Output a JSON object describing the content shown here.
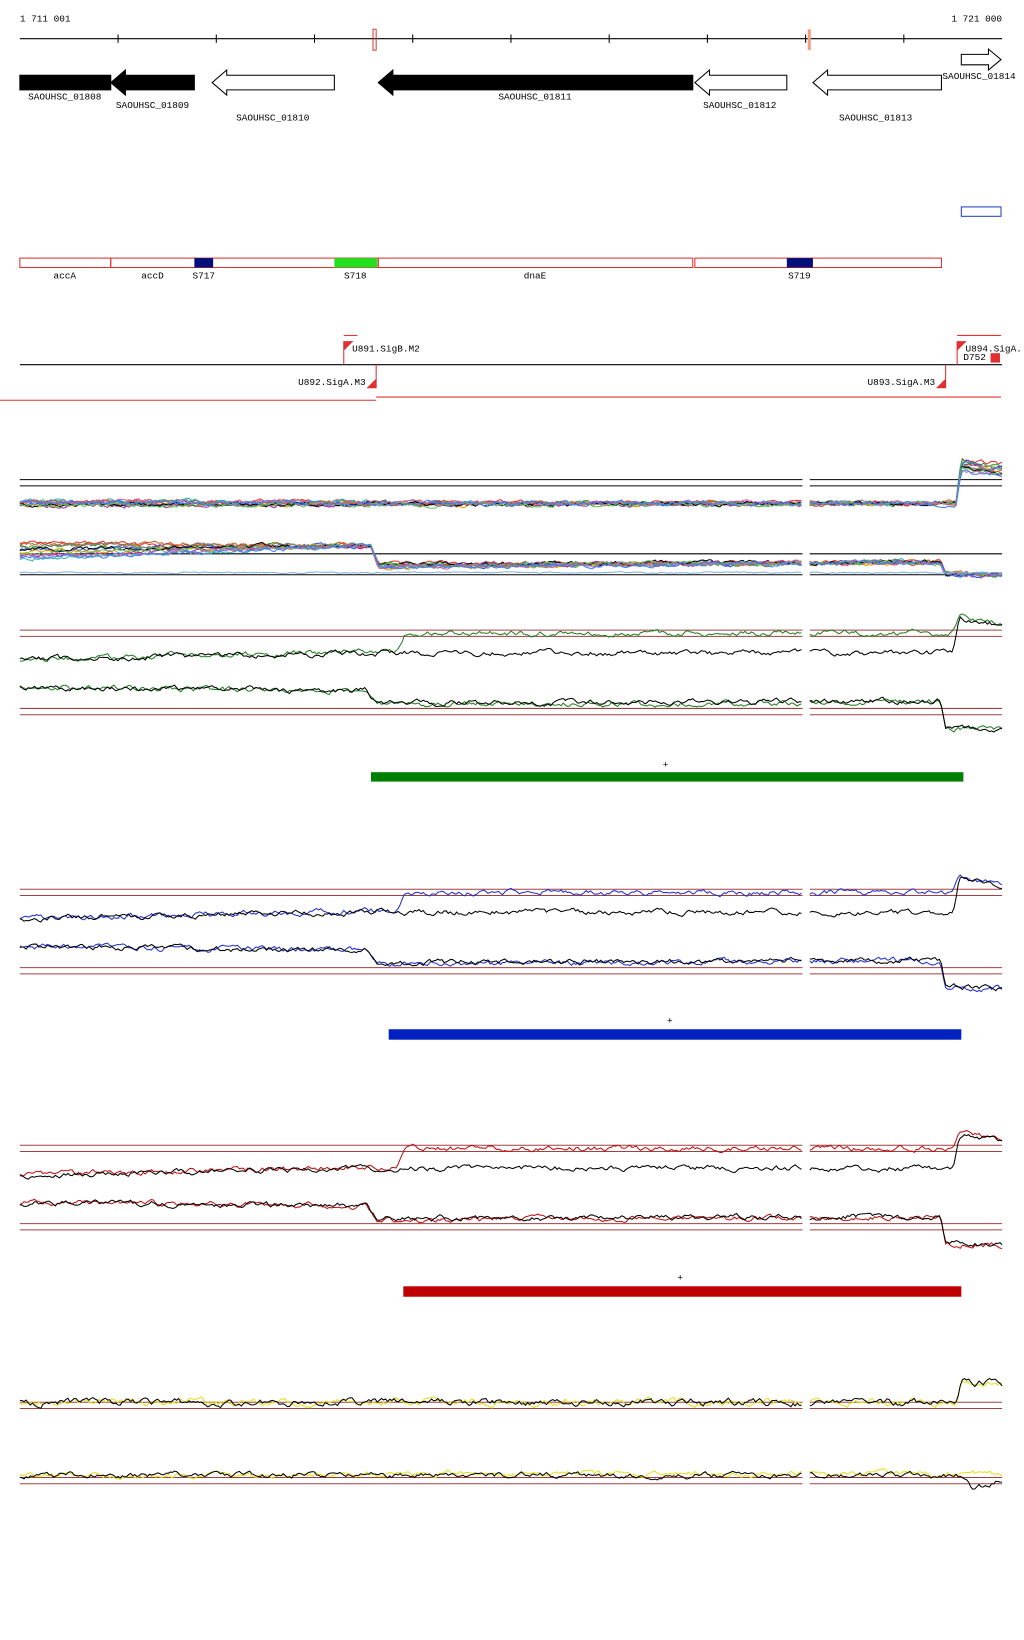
{
  "ruler": {
    "start": "1 711 001",
    "end": "1 721 000"
  },
  "genes": [
    "SAOUHSC_01808",
    "SAOUHSC_01809",
    "SAOUHSC_01810",
    "SAOUHSC_01811",
    "SAOUHSC_01812",
    "SAOUHSC_01813",
    "SAOUHSC_01814"
  ],
  "features": [
    "accA",
    "accD",
    "S717",
    "S718",
    "dnaE",
    "S719"
  ],
  "promoters": [
    "U891.SigB.M2",
    "U892.SigA.M3",
    "U893.SigA.M3",
    "U894.SigA.",
    "D752"
  ],
  "tracks": [
    {
      "strand": "+"
    },
    {
      "strand": "+"
    },
    {
      "strand": "+"
    }
  ]
}
